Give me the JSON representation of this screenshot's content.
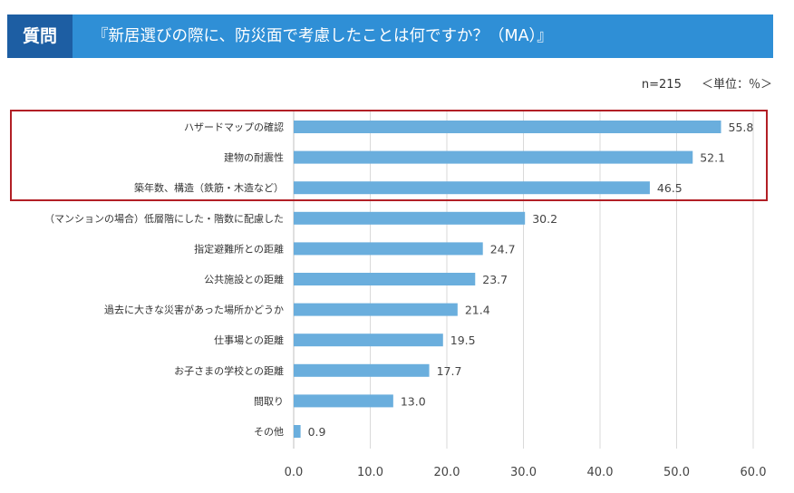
{
  "header": {
    "tag": "質問",
    "title": "『新居選びの際に、防災面で考慮したことは何ですか？（MA）』"
  },
  "meta": {
    "n": "n=215",
    "unit": "＜単位：％＞"
  },
  "colors": {
    "bar": "#6aaedd",
    "header": "#2f8fd6",
    "header_tag": "#1d5ea3",
    "highlight": "#b21f25"
  },
  "chart_data": {
    "type": "bar",
    "orientation": "horizontal",
    "title": "『新居選びの際に、防災面で考慮したことは何ですか？（MA）』",
    "xlabel": "",
    "ylabel": "",
    "xlim": [
      0,
      60
    ],
    "xticks": [
      "0.0",
      "10.0",
      "20.0",
      "30.0",
      "40.0",
      "50.0",
      "60.0"
    ],
    "grid": true,
    "categories": [
      "ハザードマップの確認",
      "建物の耐震性",
      "築年数、構造（鉄筋・木造など）",
      "（マンションの場合）低層階にした・階数に配慮した",
      "指定避難所との距離",
      "公共施設との距離",
      "過去に大きな災害があった場所かどうか",
      "仕事場との距離",
      "お子さまの学校との距離",
      "間取り",
      "その他"
    ],
    "values": [
      55.8,
      52.1,
      46.5,
      30.2,
      24.7,
      23.7,
      21.4,
      19.5,
      17.7,
      13.0,
      0.9
    ],
    "value_labels": [
      "55.8",
      "52.1",
      "46.5",
      "30.2",
      "24.7",
      "23.7",
      "21.4",
      "19.5",
      "17.7",
      "13.0",
      "0.9"
    ],
    "highlighted_categories": [
      0,
      1,
      2
    ]
  }
}
